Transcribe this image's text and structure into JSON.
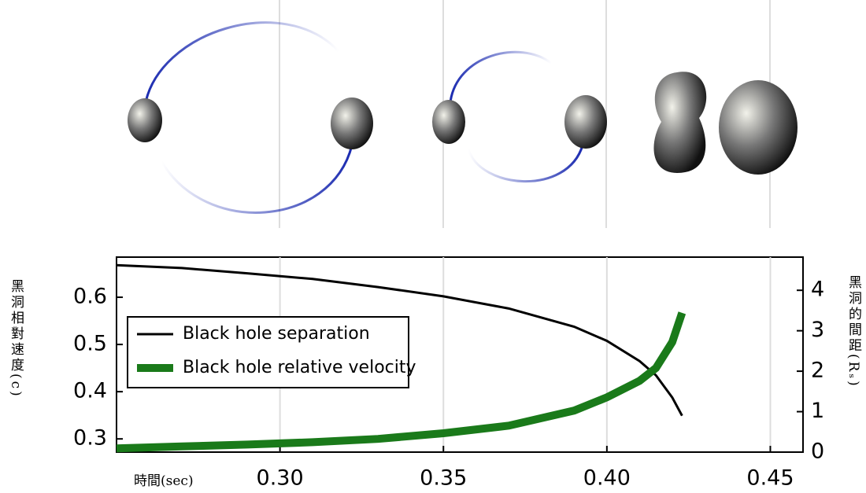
{
  "chart_data": {
    "type": "line",
    "x_label": "時間(sec)",
    "y_label": "黑洞相對速度(c)",
    "y2_label": "黑洞的間距(Rₛ)",
    "x": [
      0.25,
      0.27,
      0.29,
      0.31,
      0.33,
      0.35,
      0.37,
      0.39,
      0.4,
      0.41,
      0.415,
      0.42,
      0.423
    ],
    "series": [
      {
        "name": "Black hole separation",
        "color": "#000000",
        "axis": "y2",
        "values": [
          4.62,
          4.55,
          4.42,
          4.28,
          4.08,
          3.85,
          3.55,
          3.1,
          2.75,
          2.25,
          1.9,
          1.35,
          0.9
        ]
      },
      {
        "name": "Black hole relative velocity",
        "color": "#1a7a1a",
        "values": [
          0.28,
          0.284,
          0.288,
          0.293,
          0.3,
          0.312,
          0.328,
          0.36,
          0.388,
          0.423,
          0.45,
          0.505,
          0.567
        ]
      }
    ],
    "xlim": [
      0.25,
      0.46
    ],
    "xticks": [
      {
        "value": 0.3,
        "label": "0.30"
      },
      {
        "value": 0.35,
        "label": "0.35"
      },
      {
        "value": 0.4,
        "label": "0.40"
      },
      {
        "value": 0.45,
        "label": "0.45"
      }
    ],
    "ylim": [
      0.272,
      0.685
    ],
    "yticks": [
      0.3,
      0.4,
      0.5,
      0.6
    ],
    "y2lim": [
      0,
      4.82
    ],
    "y2ticks": [
      0,
      1,
      2,
      3,
      4
    ],
    "grid": "x",
    "legend": "upper left"
  }
}
